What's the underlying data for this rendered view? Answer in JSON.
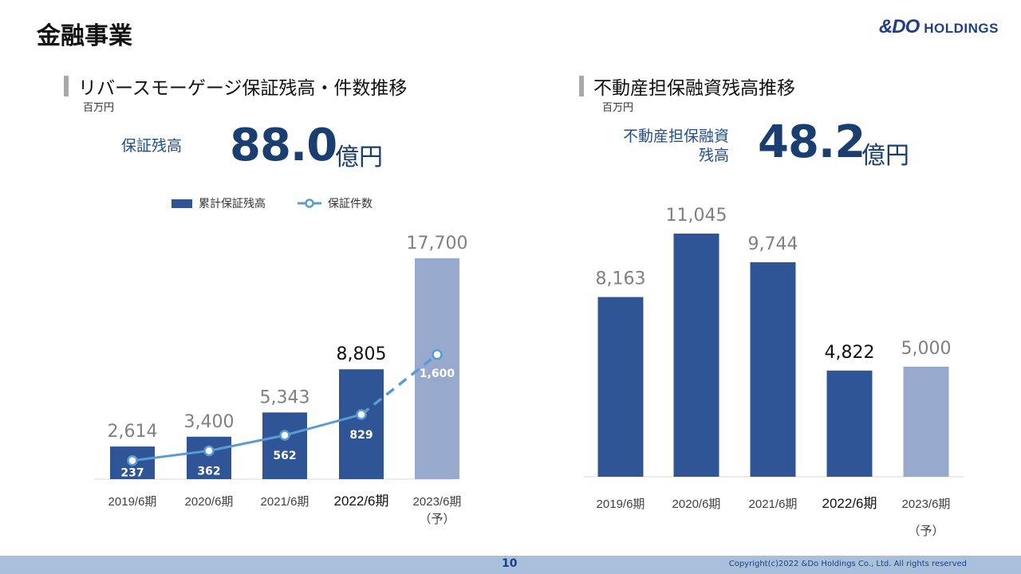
{
  "header": {
    "title": "金融事業",
    "logo_mark": "&DO",
    "logo_word": "HOLDINGS"
  },
  "left": {
    "heading": "リバースモーゲージ保証残高・件数推移",
    "unit": "百万円",
    "kpi_label": "保証残高",
    "kpi_value": "88.0",
    "kpi_unit": "億円"
  },
  "right": {
    "heading": "不動産担保融資残高推移",
    "unit": "百万円",
    "kpi_label_line1": "不動産担保融資",
    "kpi_label_line2": "残高",
    "kpi_value": "48.2",
    "kpi_unit": "億円"
  },
  "footer": {
    "page": "10",
    "copyright": "Copyright(c)2022 &Do Holdings Co., Ltd. All rights reserved"
  },
  "colors": {
    "bar_actual": "#2f5597",
    "bar_forecast": "#97a9cc",
    "line": "#5b9bd5",
    "label_gray": "#808080",
    "label_current": "#111111"
  },
  "chart_data": [
    {
      "type": "bar",
      "categories": [
        "2019/6期",
        "2020/6期",
        "2021/6期",
        "2022/6期",
        "2023/6期"
      ],
      "category_sublabels": [
        "",
        "",
        "",
        "",
        "（予）"
      ],
      "series": [
        {
          "name": "累計保証残高",
          "type": "bar",
          "values": [
            2614,
            3400,
            5343,
            8805,
            17700
          ],
          "labels": [
            "2,614",
            "3,400",
            "5,343",
            "8,805",
            "17,700"
          ],
          "forecast_index": 4
        },
        {
          "name": "保証件数",
          "type": "line",
          "values": [
            237,
            362,
            562,
            829,
            1600
          ],
          "labels": [
            "237",
            "362",
            "562",
            "829",
            "1,600"
          ],
          "forecast_index": 4
        }
      ],
      "highlight_index": 3,
      "legend_position": "top"
    },
    {
      "type": "bar",
      "categories": [
        "2019/6期",
        "2020/6期",
        "2021/6期",
        "2022/6期",
        "2023/6期"
      ],
      "category_sublabels": [
        "",
        "",
        "",
        "",
        "（予）"
      ],
      "series": [
        {
          "name": "",
          "values": [
            8163,
            11045,
            9744,
            4822,
            5000
          ],
          "labels": [
            "8,163",
            "11,045",
            "9,744",
            "4,822",
            "5,000"
          ],
          "forecast_index": 4
        }
      ],
      "highlight_index": 3
    }
  ]
}
